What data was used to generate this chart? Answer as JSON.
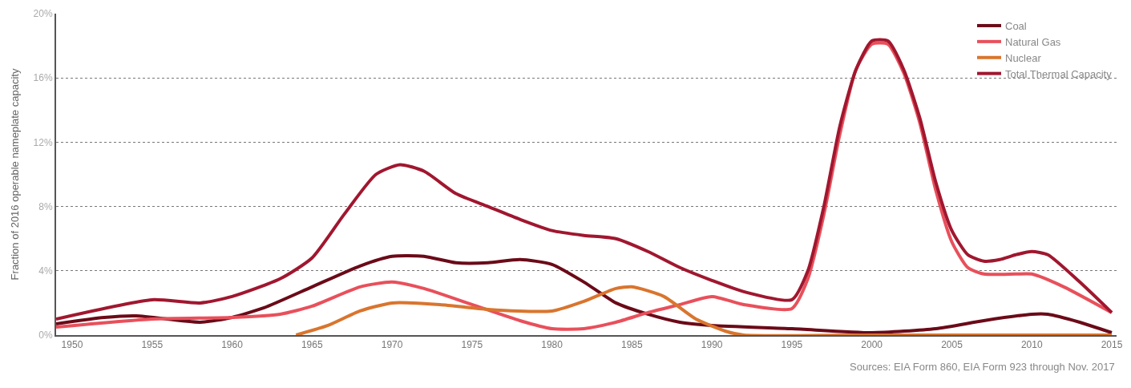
{
  "chart_data": {
    "type": "line",
    "ylabel": "Fraction of 2016 operable nameplate capacity",
    "annotations": [
      "Sources: EIA Form 860, EIA Form 923 through Nov. 2017"
    ],
    "xlim": [
      1949,
      2015.3
    ],
    "xticks": [
      1950,
      1955,
      1960,
      1965,
      1970,
      1975,
      1980,
      1985,
      1990,
      1995,
      2000,
      2005,
      2010,
      2015
    ],
    "ylim": [
      0,
      20
    ],
    "yticks": [
      {
        "value": 0,
        "label": "0%"
      },
      {
        "value": 4,
        "label": "4%"
      },
      {
        "value": 8,
        "label": "8%"
      },
      {
        "value": 12,
        "label": "12%"
      },
      {
        "value": 16,
        "label": "16%"
      },
      {
        "value": 20,
        "label": "20%"
      }
    ],
    "grid": "y",
    "legend": "top right",
    "line_style": "solid",
    "marker": "none",
    "series": [
      {
        "name": "Coal",
        "color": "#6b0a18",
        "x": [
          1949,
          1952,
          1954,
          1958,
          1960,
          1962,
          1965,
          1968,
          1970,
          1972,
          1974,
          1976,
          1978,
          1980,
          1982,
          1984,
          1986,
          1988,
          1990,
          1995,
          2000,
          2004,
          2007,
          2010,
          2011,
          2013,
          2015
        ],
        "values": [
          0.7,
          1.1,
          1.2,
          0.8,
          1.1,
          1.7,
          3.0,
          4.3,
          4.9,
          4.9,
          4.5,
          4.5,
          4.7,
          4.4,
          3.3,
          2.0,
          1.3,
          0.8,
          0.6,
          0.4,
          0.15,
          0.4,
          0.9,
          1.3,
          1.3,
          0.8,
          0.15
        ]
      },
      {
        "name": "Natural Gas",
        "color": "#e8505b",
        "x": [
          1949,
          1955,
          1960,
          1963,
          1965,
          1968,
          1970,
          1972,
          1975,
          1978,
          1980,
          1982,
          1984,
          1986,
          1988,
          1990,
          1992,
          1995,
          1996,
          1997,
          1998,
          1999,
          2000,
          2001,
          2002,
          2003,
          2004,
          2005,
          2006,
          2007,
          2009,
          2010,
          2012,
          2015
        ],
        "values": [
          0.5,
          1.0,
          1.1,
          1.3,
          1.8,
          3.0,
          3.3,
          2.9,
          1.9,
          0.9,
          0.4,
          0.4,
          0.8,
          1.4,
          1.9,
          2.4,
          1.9,
          1.65,
          3.5,
          7.5,
          12.5,
          16.5,
          18.1,
          18.1,
          16.3,
          13.2,
          9.0,
          5.8,
          4.2,
          3.8,
          3.8,
          3.8,
          3.0,
          1.4
        ]
      },
      {
        "name": "Nuclear",
        "color": "#d9752e",
        "x": [
          1964,
          1966,
          1968,
          1970,
          1973,
          1976,
          1980,
          1982,
          1984,
          1985,
          1987,
          1989,
          1991,
          1992,
          2000,
          2010,
          2015
        ],
        "values": [
          0,
          0.6,
          1.5,
          2.0,
          1.9,
          1.6,
          1.5,
          2.1,
          2.9,
          3.0,
          2.4,
          1.0,
          0.2,
          0,
          0,
          0,
          0
        ]
      },
      {
        "name": "Total Thermal Capacity",
        "color": "#a0172f",
        "x": [
          1949,
          1955,
          1958,
          1960,
          1963,
          1965,
          1967,
          1969,
          1970.5,
          1972,
          1974,
          1976,
          1978,
          1980,
          1982,
          1984,
          1986,
          1988,
          1990,
          1992,
          1995,
          1996,
          1997,
          1998,
          1999,
          2000,
          2001,
          2002,
          2003,
          2004,
          2005,
          2006,
          2007,
          2008,
          2009,
          2010,
          2011,
          2013,
          2015
        ],
        "values": [
          1.0,
          2.2,
          2.0,
          2.4,
          3.5,
          4.8,
          7.5,
          10.0,
          10.6,
          10.2,
          8.8,
          8.0,
          7.2,
          6.5,
          6.2,
          6.0,
          5.2,
          4.2,
          3.4,
          2.7,
          2.2,
          4.0,
          8.0,
          13.0,
          16.5,
          18.3,
          18.3,
          16.5,
          13.5,
          9.5,
          6.5,
          5.0,
          4.6,
          4.7,
          5.0,
          5.2,
          5.0,
          3.3,
          1.4
        ]
      }
    ]
  }
}
